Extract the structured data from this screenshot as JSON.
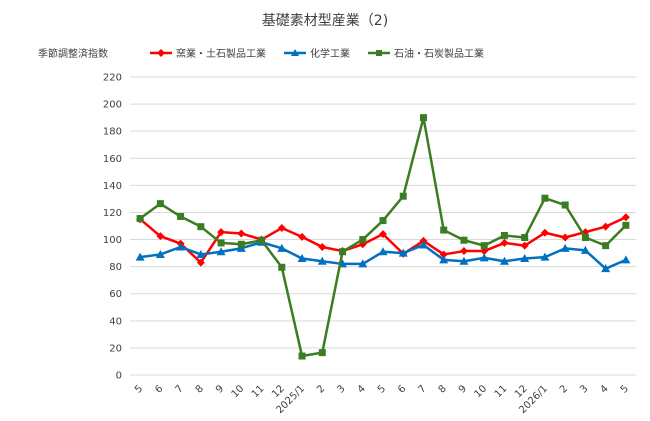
{
  "chart_data": {
    "type": "line",
    "title": "基礎素材型産業（2)",
    "ylabel": "季節調整済指数",
    "xlabel": "",
    "ylim": [
      0,
      220
    ],
    "yticks": [
      0,
      20,
      40,
      60,
      80,
      100,
      120,
      140,
      160,
      180,
      200,
      220
    ],
    "grid": true,
    "legend_position": "top",
    "categories": [
      "5",
      "6",
      "7",
      "8",
      "9",
      "10",
      "11",
      "12",
      "2025/1",
      "2",
      "3",
      "4",
      "5",
      "6",
      "7",
      "8",
      "9",
      "10",
      "11",
      "12",
      "2026/1",
      "2",
      "3",
      "4",
      "5"
    ],
    "series": [
      {
        "name": "窯業・土石製品工業",
        "color": "#ff0000",
        "marker": "diamond",
        "values": [
          115,
          102.5,
          97,
          83,
          105.5,
          104.5,
          100,
          108.5,
          102,
          94.5,
          91.5,
          96.5,
          104,
          89.5,
          99,
          89,
          91.5,
          91.5,
          97.5,
          95.5,
          105,
          101.5,
          105.5,
          109.5,
          116.5
        ]
      },
      {
        "name": "化学工業",
        "color": "#0070c0",
        "marker": "triangle",
        "values": [
          87,
          89,
          94.5,
          89,
          91,
          93.5,
          98,
          93.5,
          86,
          84,
          82,
          82,
          91,
          90,
          96,
          85,
          84,
          86.5,
          84,
          86,
          87,
          93.5,
          92,
          78.5,
          85
        ]
      },
      {
        "name": "石油・石炭製品工業",
        "color": "#3a7d22",
        "marker": "square",
        "values": [
          115.5,
          126.5,
          117,
          109.5,
          97.5,
          96.5,
          99.5,
          79.5,
          14,
          16.5,
          91,
          100,
          114,
          132,
          190,
          107,
          99.5,
          95.5,
          103,
          101.5,
          130.5,
          125.5,
          101.5,
          95.5,
          110.5
        ]
      }
    ]
  }
}
